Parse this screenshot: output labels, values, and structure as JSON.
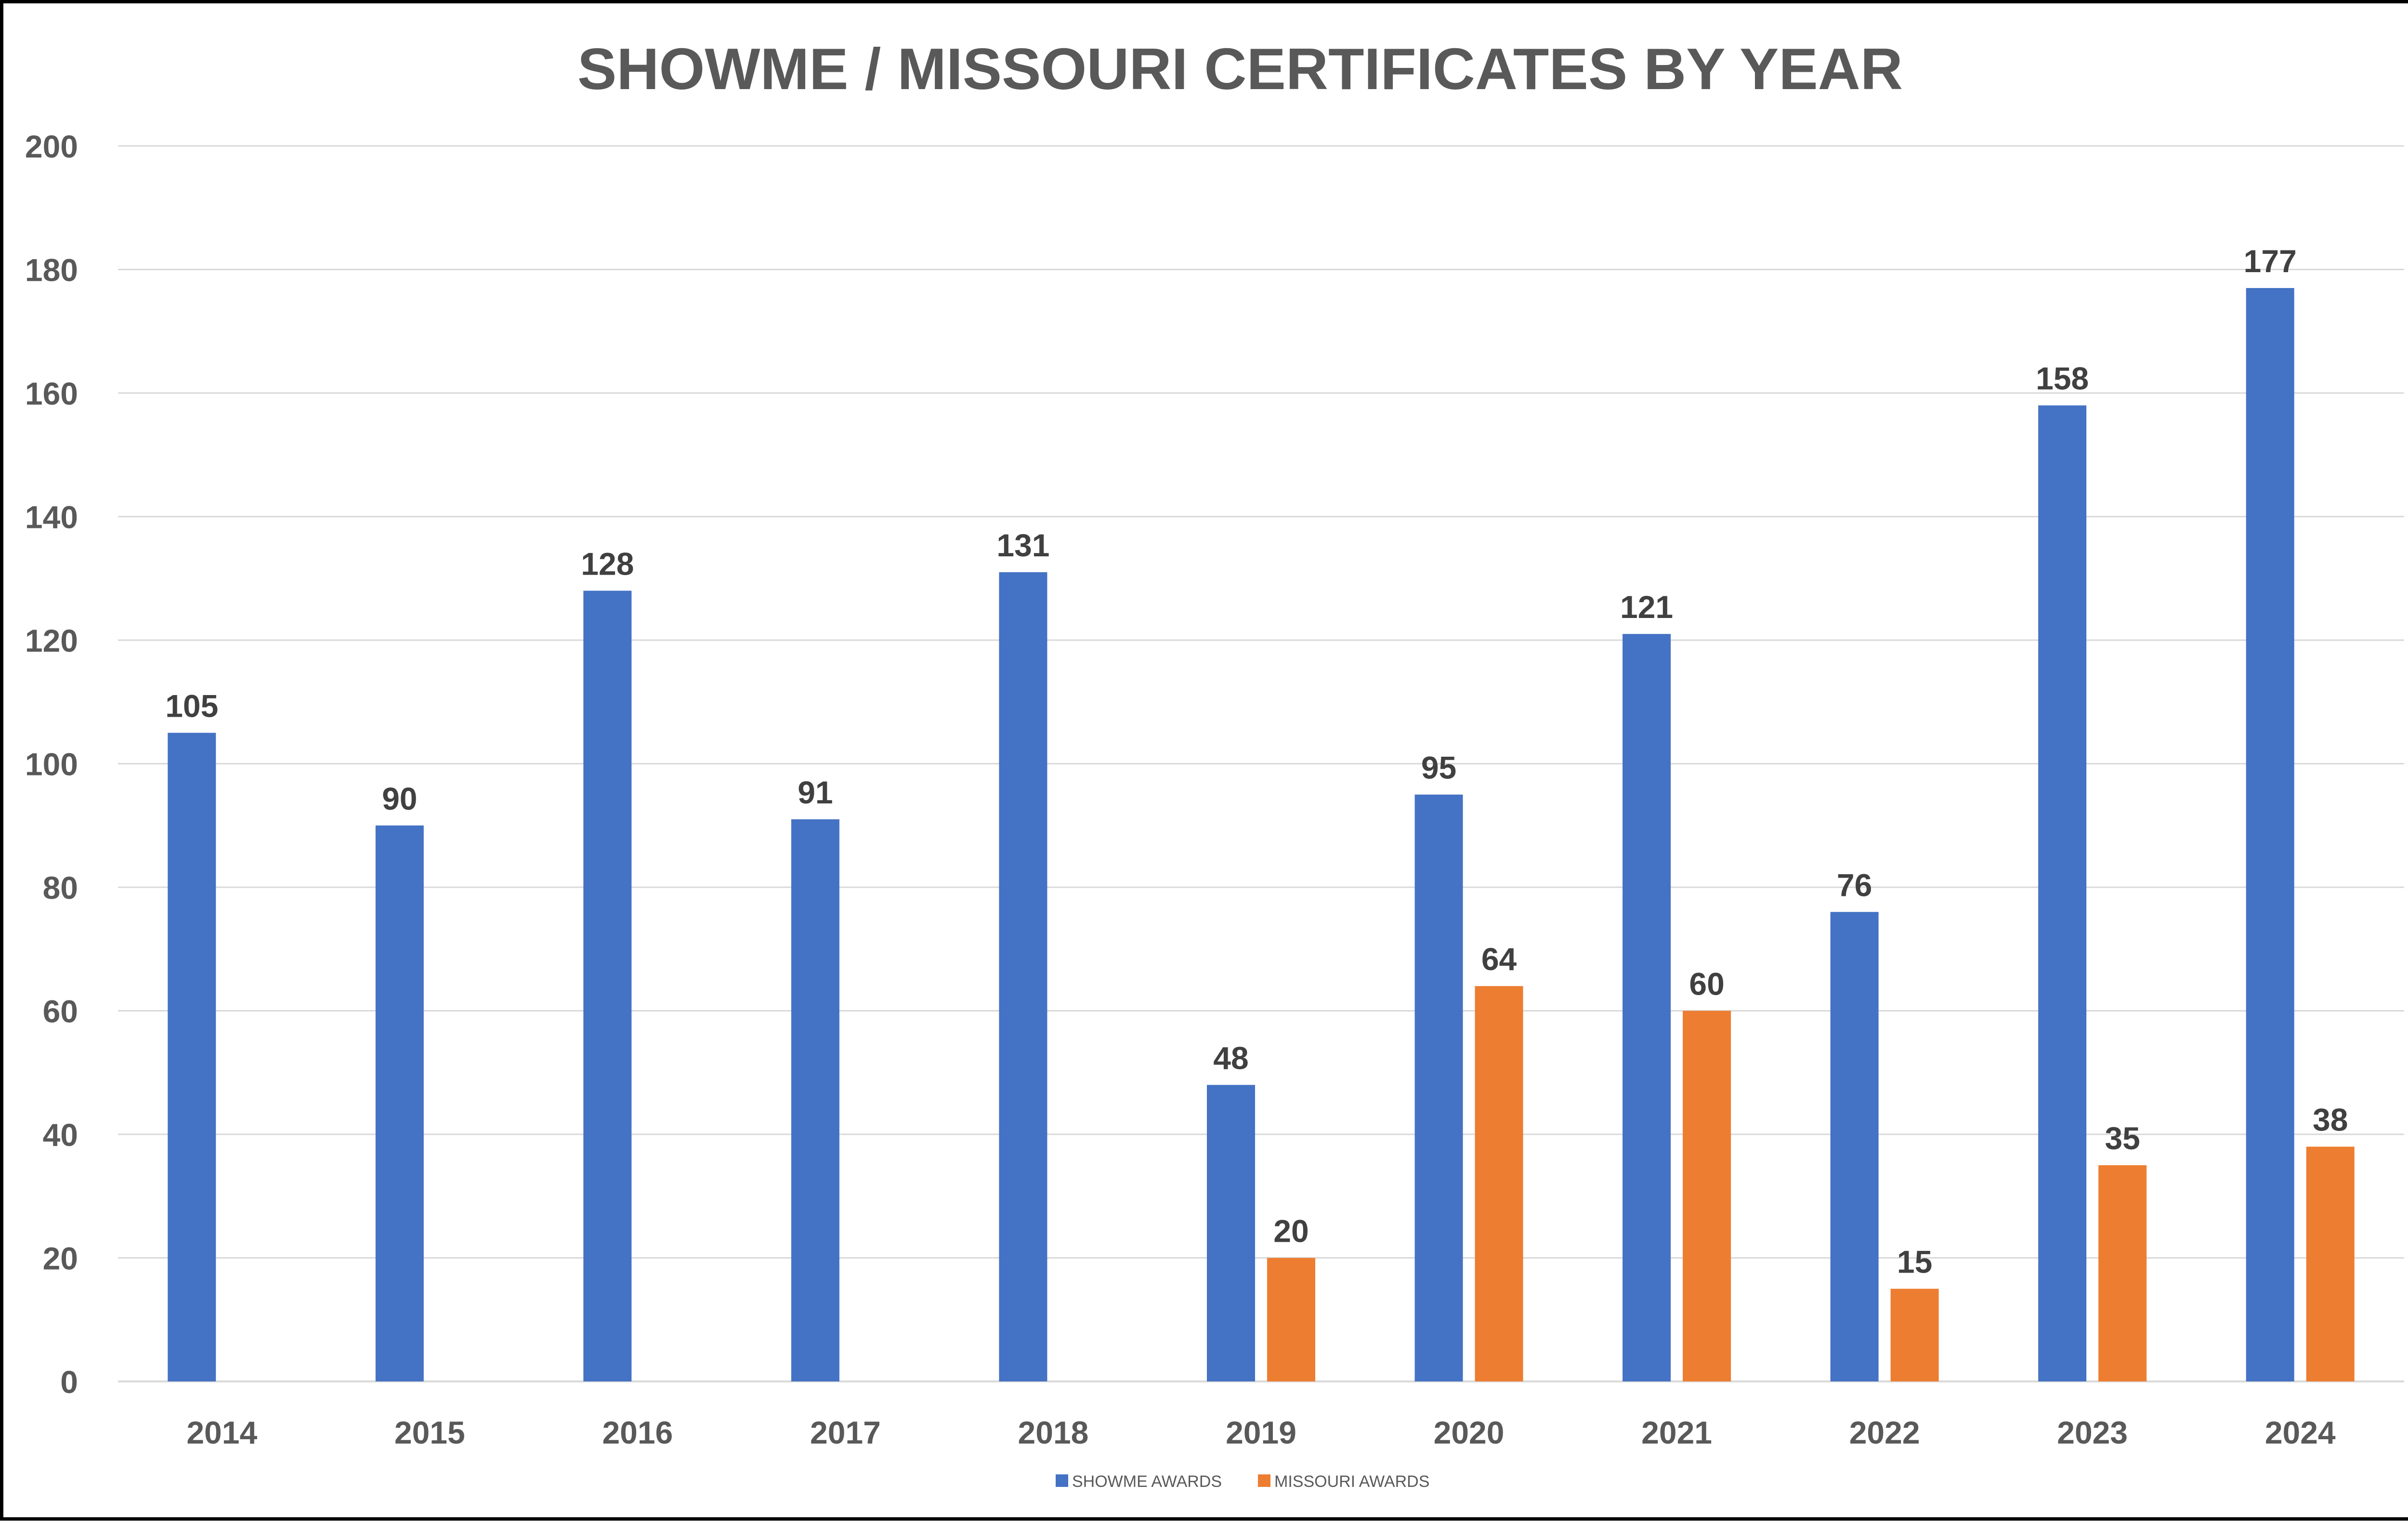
{
  "chart_data": {
    "type": "bar",
    "title": "SHOWME / MISSOURI CERTIFICATES BY YEAR",
    "xlabel": "",
    "ylabel": "",
    "ylim": [
      0,
      200
    ],
    "yticks": [
      0,
      20,
      40,
      60,
      80,
      100,
      120,
      140,
      160,
      180,
      200
    ],
    "grid": true,
    "legend_position": "bottom",
    "categories": [
      "2014",
      "2015",
      "2016",
      "2017",
      "2018",
      "2019",
      "2020",
      "2021",
      "2022",
      "2023",
      "2024"
    ],
    "series": [
      {
        "name": "SHOWME AWARDS",
        "color": "#4472C4",
        "values": [
          105,
          90,
          128,
          91,
          131,
          48,
          95,
          121,
          76,
          158,
          177
        ]
      },
      {
        "name": "MISSOURI AWARDS",
        "color": "#ED7D31",
        "values": [
          null,
          null,
          null,
          null,
          null,
          20,
          64,
          60,
          15,
          35,
          38
        ]
      }
    ]
  }
}
